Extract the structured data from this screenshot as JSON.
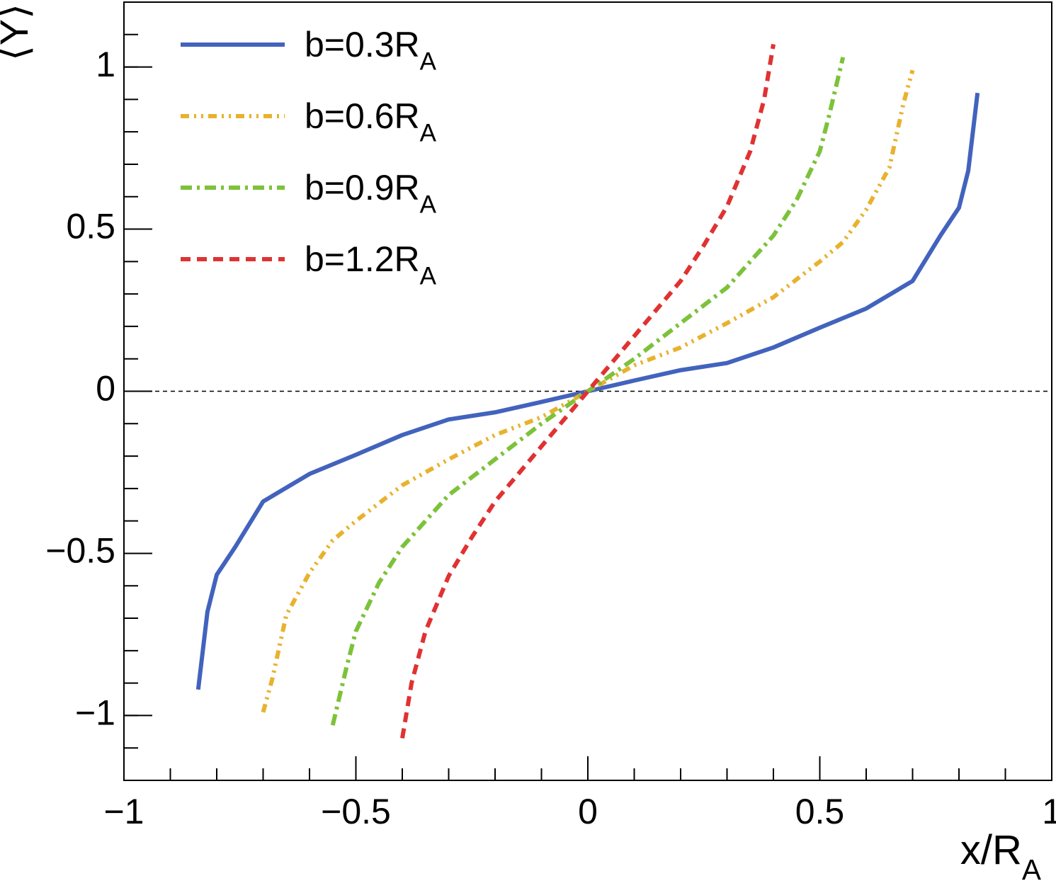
{
  "chart_data": {
    "type": "line",
    "xlabel": "x/RA",
    "ylabel": "⟨Y⟩",
    "xlim": [
      -1,
      1
    ],
    "ylim": [
      -1.2,
      1.2
    ],
    "xticks": [
      {
        "value": -1,
        "label": "−1"
      },
      {
        "value": -0.5,
        "label": "−0.5"
      },
      0,
      0.5,
      1
    ],
    "yticks": [
      {
        "value": -1,
        "label": "−1"
      },
      {
        "value": -0.5,
        "label": "−0.5"
      },
      0,
      0.5,
      1
    ],
    "minor_divisions": 5,
    "reference_line": 0,
    "legend": "top-left",
    "series": [
      {
        "name": "b=0.3RA",
        "color": "#4263bd",
        "dash": "solid",
        "x": [
          -0.84,
          -0.82,
          -0.8,
          -0.76,
          -0.7,
          -0.6,
          -0.5,
          -0.4,
          -0.3,
          -0.2,
          -0.1,
          0,
          0.1,
          0.2,
          0.3,
          0.4,
          0.5,
          0.6,
          0.7,
          0.76,
          0.8,
          0.82,
          0.84
        ],
        "values": [
          -0.92,
          -0.68,
          -0.566,
          -0.48,
          -0.34,
          -0.255,
          -0.196,
          -0.135,
          -0.087,
          -0.065,
          -0.033,
          0,
          0.033,
          0.065,
          0.087,
          0.135,
          0.196,
          0.255,
          0.34,
          0.48,
          0.566,
          0.68,
          0.92
        ]
      },
      {
        "name": "b=0.6RA",
        "color": "#e8b22e",
        "dash": "dash-dot-dot",
        "x": [
          -0.7,
          -0.68,
          -0.65,
          -0.6,
          -0.55,
          -0.5,
          -0.4,
          -0.3,
          -0.2,
          -0.1,
          0,
          0.1,
          0.2,
          0.3,
          0.4,
          0.5,
          0.55,
          0.6,
          0.65,
          0.68,
          0.7
        ],
        "values": [
          -0.99,
          -0.886,
          -0.69,
          -0.56,
          -0.46,
          -0.4,
          -0.29,
          -0.21,
          -0.135,
          -0.08,
          0,
          0.08,
          0.135,
          0.21,
          0.29,
          0.4,
          0.46,
          0.56,
          0.69,
          0.886,
          0.99
        ]
      },
      {
        "name": "b=0.9RA",
        "color": "#7cc23a",
        "dash": "dash-dot",
        "x": [
          -0.55,
          -0.52,
          -0.5,
          -0.45,
          -0.4,
          -0.3,
          -0.2,
          -0.1,
          0,
          0.1,
          0.2,
          0.3,
          0.4,
          0.45,
          0.5,
          0.52,
          0.55
        ],
        "values": [
          -1.03,
          -0.85,
          -0.74,
          -0.59,
          -0.48,
          -0.32,
          -0.21,
          -0.1,
          0,
          0.1,
          0.21,
          0.32,
          0.48,
          0.59,
          0.74,
          0.85,
          1.03
        ]
      },
      {
        "name": "b=1.2RA",
        "color": "#e03232",
        "dash": "dash",
        "x": [
          -0.4,
          -0.38,
          -0.35,
          -0.3,
          -0.25,
          -0.2,
          -0.1,
          0,
          0.1,
          0.2,
          0.25,
          0.3,
          0.35,
          0.38,
          0.4
        ],
        "values": [
          -1.07,
          -0.9,
          -0.74,
          -0.57,
          -0.45,
          -0.34,
          -0.17,
          0,
          0.17,
          0.34,
          0.45,
          0.57,
          0.74,
          0.9,
          1.07
        ]
      }
    ]
  }
}
